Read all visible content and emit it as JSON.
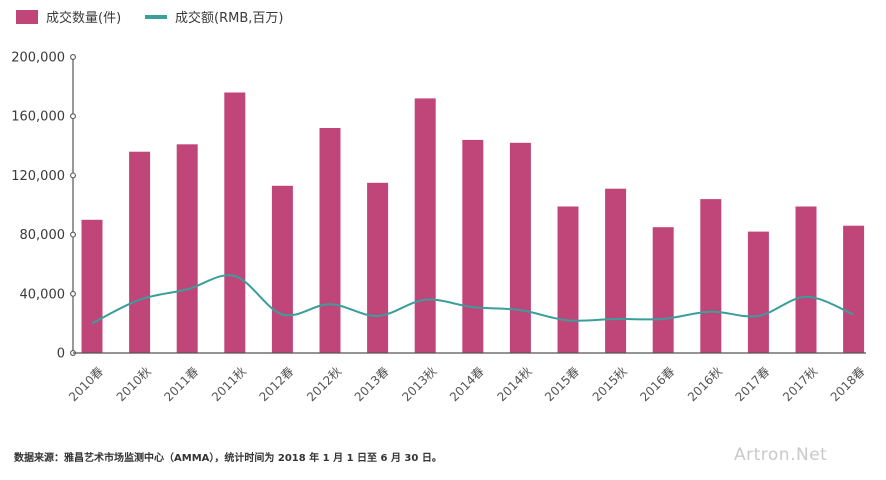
{
  "chart_data": {
    "type": "bar+line",
    "categories": [
      "2010春",
      "2010秋",
      "2011春",
      "2011秋",
      "2012春",
      "2012秋",
      "2013春",
      "2013秋",
      "2014春",
      "2014秋",
      "2015春",
      "2015秋",
      "2016春",
      "2016秋",
      "2017春",
      "2017秋",
      "2018春"
    ],
    "series": [
      {
        "name": "成交数量(件)",
        "type": "bar",
        "color": "#c0467a",
        "values": [
          90000,
          136000,
          141000,
          176000,
          113000,
          152000,
          115000,
          172000,
          144000,
          142000,
          99000,
          111000,
          85000,
          104000,
          82000,
          99000,
          86000
        ]
      },
      {
        "name": "成交额(RMB,百万)",
        "type": "line",
        "color": "#3a9e9a",
        "values": [
          20000,
          36000,
          43000,
          52000,
          26000,
          33000,
          25000,
          36000,
          31000,
          29000,
          22000,
          23000,
          23000,
          28000,
          25000,
          38000,
          26000
        ]
      }
    ],
    "ylim": [
      0,
      200000
    ],
    "yticks": [
      0,
      40000,
      80000,
      120000,
      160000,
      200000
    ],
    "ytick_labels": [
      "0",
      "40,000",
      "80,000",
      "120,000",
      "160,000",
      "200,000"
    ],
    "highlight_category": "2018春",
    "highlight_color": "#c0467a",
    "legend_position": "top-left"
  },
  "legend": {
    "bar_label": "成交数量(件)",
    "line_label": "成交额(RMB,百万)"
  },
  "footer": {
    "source": "数据来源：雅昌艺术市场监测中心（AMMA），统计时间为 2018 年 1 月 1 日至 6 月 30 日。",
    "watermark": "Artron.Net"
  }
}
